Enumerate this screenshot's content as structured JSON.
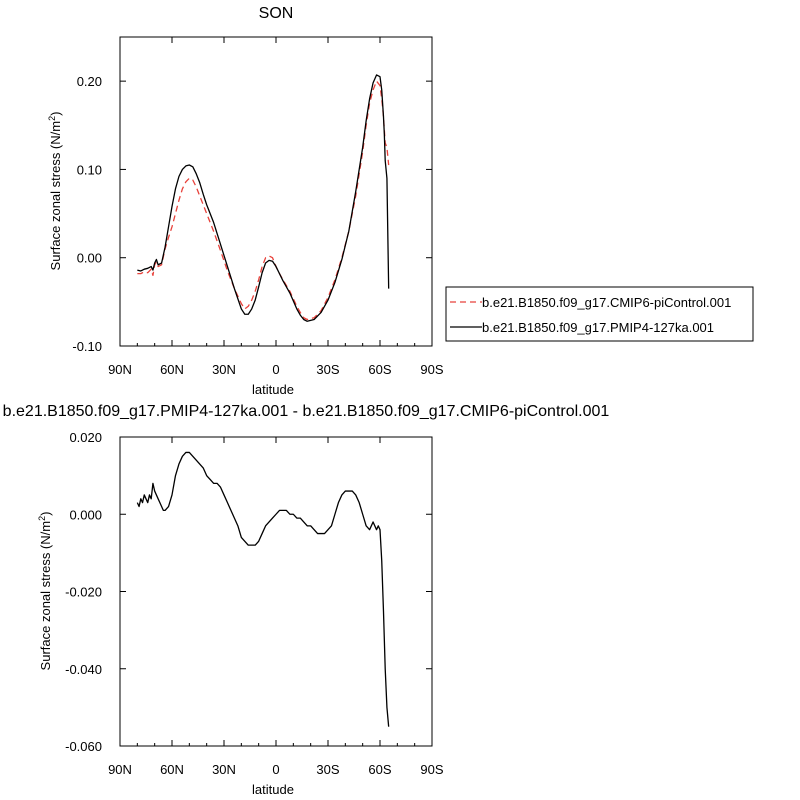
{
  "chart_data": [
    {
      "type": "line",
      "title": "SON",
      "xlabel": "latitude",
      "ylabel": "Surface zonal stress (N/m",
      "ylabel_sup": "2",
      "ylabel_end": ")",
      "xlim": [
        90,
        -90
      ],
      "ylim": [
        -0.1,
        0.25
      ],
      "x_ticks": [
        90,
        60,
        30,
        0,
        -30,
        -60,
        -90
      ],
      "x_tick_labels": [
        "90N",
        "60N",
        "30N",
        "0",
        "30S",
        "60S",
        "90S"
      ],
      "y_ticks": [
        -0.1,
        0.0,
        0.1,
        0.2
      ],
      "y_tick_labels": [
        "-0.10",
        "0.00",
        "0.10",
        "0.20"
      ],
      "legend_position": "right",
      "series": [
        {
          "name": "b.e21.B1850.f09_g17.CMIP6-piControl.001",
          "color": "#e8413a",
          "dash": "dashed",
          "x": [
            80,
            78,
            76,
            74,
            72,
            71,
            70,
            69,
            68,
            66,
            64,
            62,
            60,
            58,
            56,
            54,
            52,
            50,
            48,
            46,
            44,
            42,
            40,
            36,
            32,
            28,
            24,
            20,
            18,
            16,
            14,
            12,
            10,
            8,
            6,
            4,
            2,
            0,
            -2,
            -4,
            -8,
            -12,
            -14,
            -16,
            -18,
            -22,
            -26,
            -30,
            -34,
            -38,
            -42,
            -46,
            -50,
            -52,
            -54,
            -56,
            -58,
            -60,
            -61,
            -62,
            -63,
            -64,
            -65
          ],
          "values": [
            -0.018,
            -0.018,
            -0.016,
            -0.017,
            -0.013,
            -0.02,
            -0.008,
            -0.005,
            -0.01,
            -0.008,
            0.01,
            0.023,
            0.035,
            0.05,
            0.065,
            0.078,
            0.086,
            0.09,
            0.088,
            0.08,
            0.07,
            0.06,
            0.05,
            0.03,
            0.008,
            -0.015,
            -0.035,
            -0.052,
            -0.058,
            -0.055,
            -0.048,
            -0.038,
            -0.025,
            -0.01,
            0.0,
            0.002,
            0.0,
            -0.01,
            -0.018,
            -0.025,
            -0.038,
            -0.055,
            -0.062,
            -0.068,
            -0.07,
            -0.068,
            -0.06,
            -0.045,
            -0.025,
            0.0,
            0.03,
            0.07,
            0.12,
            0.15,
            0.175,
            0.19,
            0.2,
            0.195,
            0.18,
            0.16,
            0.13,
            0.125,
            0.105
          ]
        },
        {
          "name": "b.e21.B1850.f09_g17.PMIP4-127ka.001",
          "color": "#000000",
          "dash": "solid",
          "x": [
            80,
            78,
            76,
            74,
            72,
            71,
            70,
            69,
            68,
            66,
            64,
            62,
            60,
            58,
            56,
            54,
            52,
            50,
            48,
            46,
            44,
            42,
            40,
            36,
            32,
            28,
            24,
            20,
            18,
            16,
            14,
            12,
            10,
            8,
            6,
            4,
            2,
            0,
            -2,
            -4,
            -8,
            -12,
            -14,
            -16,
            -18,
            -22,
            -26,
            -30,
            -34,
            -38,
            -42,
            -46,
            -50,
            -52,
            -54,
            -56,
            -58,
            -60,
            -61,
            -62,
            -62.5,
            -63,
            -64,
            -65
          ],
          "values": [
            -0.014,
            -0.015,
            -0.013,
            -0.012,
            -0.01,
            -0.014,
            -0.006,
            -0.002,
            -0.008,
            -0.006,
            0.012,
            0.035,
            0.058,
            0.078,
            0.092,
            0.1,
            0.104,
            0.105,
            0.103,
            0.095,
            0.085,
            0.072,
            0.06,
            0.04,
            0.015,
            -0.01,
            -0.035,
            -0.058,
            -0.064,
            -0.064,
            -0.058,
            -0.048,
            -0.033,
            -0.017,
            -0.006,
            -0.003,
            -0.004,
            -0.01,
            -0.018,
            -0.026,
            -0.04,
            -0.058,
            -0.065,
            -0.07,
            -0.072,
            -0.07,
            -0.062,
            -0.048,
            -0.028,
            -0.002,
            0.03,
            0.075,
            0.125,
            0.155,
            0.18,
            0.198,
            0.207,
            0.205,
            0.19,
            0.16,
            0.14,
            0.11,
            0.09,
            -0.035
          ]
        }
      ]
    },
    {
      "type": "line",
      "title": "b.e21.B1850.f09_g17.PMIP4-127ka.001 - b.e21.B1850.f09_g17.CMIP6-piControl.001",
      "xlabel": "latitude",
      "ylabel": "Surface zonal stress (N/m",
      "ylabel_sup": "2",
      "ylabel_end": ")",
      "xlim": [
        90,
        -90
      ],
      "ylim": [
        -0.06,
        0.02
      ],
      "x_ticks": [
        90,
        60,
        30,
        0,
        -30,
        -60,
        -90
      ],
      "x_tick_labels": [
        "90N",
        "60N",
        "30N",
        "0",
        "30S",
        "60S",
        "90S"
      ],
      "y_ticks": [
        -0.06,
        -0.04,
        -0.02,
        0.0,
        0.02
      ],
      "y_tick_labels": [
        "-0.060",
        "-0.040",
        "-0.020",
        "0.000",
        "0.020"
      ],
      "series": [
        {
          "color": "#000000",
          "dash": "solid",
          "x": [
            80,
            79,
            78,
            77,
            76,
            75,
            74,
            73,
            72,
            71,
            70,
            69,
            68,
            67,
            66,
            65,
            64,
            62,
            60,
            58,
            56,
            54,
            52,
            50,
            48,
            46,
            44,
            42,
            40,
            38,
            36,
            34,
            32,
            30,
            28,
            26,
            24,
            22,
            20,
            18,
            16,
            14,
            12,
            10,
            8,
            6,
            4,
            2,
            0,
            -2,
            -4,
            -6,
            -8,
            -10,
            -12,
            -14,
            -16,
            -18,
            -20,
            -22,
            -24,
            -26,
            -28,
            -30,
            -32,
            -34,
            -36,
            -38,
            -40,
            -42,
            -44,
            -46,
            -48,
            -50,
            -52,
            -54,
            -56,
            -58,
            -59,
            -60,
            -61,
            -62,
            -63,
            -64,
            -65
          ],
          "values": [
            0.003,
            0.002,
            0.004,
            0.003,
            0.005,
            0.004,
            0.003,
            0.005,
            0.004,
            0.008,
            0.006,
            0.005,
            0.004,
            0.003,
            0.002,
            0.001,
            0.001,
            0.002,
            0.005,
            0.01,
            0.013,
            0.015,
            0.016,
            0.016,
            0.015,
            0.014,
            0.013,
            0.012,
            0.01,
            0.009,
            0.008,
            0.008,
            0.007,
            0.005,
            0.003,
            0.001,
            -0.001,
            -0.003,
            -0.006,
            -0.007,
            -0.008,
            -0.008,
            -0.008,
            -0.007,
            -0.005,
            -0.003,
            -0.002,
            -0.001,
            0.0,
            0.001,
            0.001,
            0.001,
            0.0,
            0.0,
            -0.001,
            -0.001,
            -0.002,
            -0.003,
            -0.003,
            -0.004,
            -0.005,
            -0.005,
            -0.005,
            -0.004,
            -0.003,
            0.0,
            0.003,
            0.005,
            0.006,
            0.006,
            0.006,
            0.005,
            0.003,
            0.0,
            -0.003,
            -0.004,
            -0.002,
            -0.004,
            -0.003,
            -0.004,
            -0.012,
            -0.025,
            -0.04,
            -0.05,
            -0.055
          ]
        }
      ]
    }
  ]
}
